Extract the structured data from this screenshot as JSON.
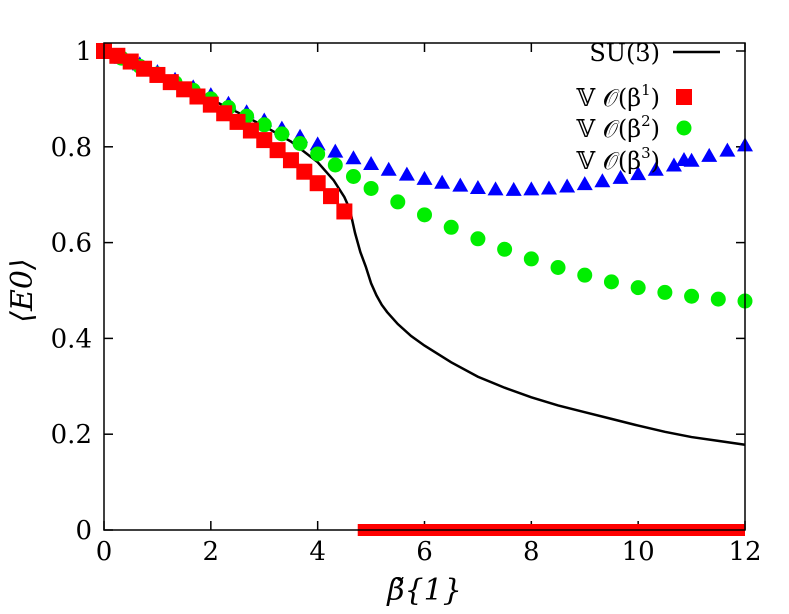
{
  "chart_data": {
    "type": "line",
    "title": "",
    "xlabel": "β̃{1}",
    "ylabel": "⟨E0⟩",
    "xlim": [
      0,
      12
    ],
    "ylim": [
      0,
      1.05
    ],
    "xticks": [
      0,
      2,
      4,
      6,
      8,
      10,
      12
    ],
    "xtick_labels": [
      "0",
      "2",
      "4",
      "6",
      "8",
      "10",
      "12"
    ],
    "yticks": [
      0,
      0.2,
      0.4,
      0.6,
      0.8,
      1
    ],
    "ytick_labels": [
      "0",
      "0.2",
      "0.4",
      "0.6",
      "0.8",
      "1"
    ],
    "grid": false,
    "legend_position": "top-right",
    "series": [
      {
        "name": "SU(3)",
        "style": "line",
        "color": "#000000",
        "x": [
          0,
          0.5,
          1,
          1.5,
          2,
          2.5,
          3,
          3.5,
          4,
          4.3,
          4.5,
          4.6,
          4.7,
          4.8,
          4.9,
          5.0,
          5.1,
          5.2,
          5.3,
          5.5,
          5.75,
          6.0,
          6.5,
          7.0,
          7.5,
          8.0,
          8.5,
          9.0,
          9.5,
          10.0,
          10.5,
          11.0,
          11.5,
          12.0
        ],
        "y": [
          1.0,
          0.976,
          0.951,
          0.926,
          0.899,
          0.872,
          0.843,
          0.811,
          0.768,
          0.73,
          0.695,
          0.67,
          0.62,
          0.58,
          0.55,
          0.515,
          0.49,
          0.47,
          0.455,
          0.43,
          0.405,
          0.385,
          0.35,
          0.32,
          0.297,
          0.277,
          0.26,
          0.246,
          0.232,
          0.218,
          0.205,
          0.194,
          0.186,
          0.178
        ]
      },
      {
        "name": "𝕍 𝒪(β1)",
        "label_parts": [
          "𝕍 𝒪(β",
          "1",
          ")"
        ],
        "style": "marker",
        "marker": "square",
        "color": "#ff0000",
        "x": [
          0,
          0.25,
          0.5,
          0.75,
          1.0,
          1.25,
          1.5,
          1.75,
          2.0,
          2.25,
          2.5,
          2.75,
          3.0,
          3.25,
          3.5,
          3.75,
          4.0,
          4.25,
          4.5
        ],
        "y": [
          1.0,
          0.99,
          0.978,
          0.963,
          0.95,
          0.935,
          0.92,
          0.905,
          0.888,
          0.87,
          0.852,
          0.834,
          0.814,
          0.793,
          0.772,
          0.748,
          0.724,
          0.697,
          0.665
        ]
      },
      {
        "name": "𝕍 𝒪(β2)",
        "label_parts": [
          "𝕍 𝒪(β",
          "2",
          ")"
        ],
        "style": "marker",
        "marker": "circle",
        "color": "#00ee00",
        "x": [
          0,
          0.33,
          0.67,
          1.0,
          1.33,
          1.67,
          2.0,
          2.33,
          2.67,
          3.0,
          3.33,
          3.67,
          4.0,
          4.33,
          4.67,
          5.0,
          5.5,
          6.0,
          6.5,
          7.0,
          7.5,
          8.0,
          8.5,
          9.0,
          9.5,
          10.0,
          10.5,
          11.0,
          11.5,
          12.0
        ],
        "y": [
          1.0,
          0.985,
          0.968,
          0.952,
          0.934,
          0.918,
          0.9,
          0.882,
          0.864,
          0.846,
          0.827,
          0.807,
          0.785,
          0.762,
          0.738,
          0.713,
          0.685,
          0.658,
          0.632,
          0.608,
          0.586,
          0.566,
          0.548,
          0.532,
          0.518,
          0.506,
          0.496,
          0.488,
          0.482,
          0.478
        ]
      },
      {
        "name": "𝕍 𝒪(β3)",
        "label_parts": [
          "𝕍 𝒪(β",
          "3",
          ")"
        ],
        "style": "marker",
        "marker": "triangle",
        "color": "#0000ff",
        "x": [
          0,
          0.33,
          0.67,
          1.0,
          1.33,
          1.67,
          2.0,
          2.33,
          2.67,
          3.0,
          3.33,
          3.67,
          4.0,
          4.33,
          4.67,
          5.0,
          5.33,
          5.67,
          6.0,
          6.33,
          6.67,
          7.0,
          7.33,
          7.67,
          8.0,
          8.33,
          8.67,
          9.0,
          9.33,
          9.67,
          10.0,
          10.33,
          10.67,
          11.0,
          11.33,
          11.67,
          12.0
        ],
        "y": [
          1.0,
          0.986,
          0.972,
          0.956,
          0.94,
          0.924,
          0.908,
          0.89,
          0.872,
          0.855,
          0.838,
          0.821,
          0.805,
          0.79,
          0.776,
          0.764,
          0.752,
          0.742,
          0.733,
          0.725,
          0.719,
          0.714,
          0.711,
          0.71,
          0.711,
          0.713,
          0.717,
          0.722,
          0.728,
          0.735,
          0.743,
          0.752,
          0.761,
          0.771,
          0.781,
          0.792,
          0.803
        ]
      }
    ],
    "annotations": [
      {
        "type": "horizontal-band",
        "color": "#ff0000",
        "x_start": 4.75,
        "x_end": 12,
        "y": 0
      }
    ]
  }
}
